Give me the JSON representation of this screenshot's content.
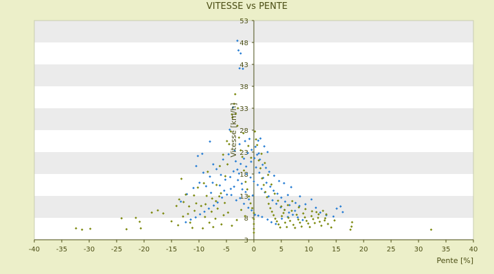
{
  "chart_data": {
    "type": "scatter",
    "title": "VITESSE vs PENTE",
    "xlabel": "Pente [%]",
    "ylabel": "Vitesse [km/h]",
    "xlim": [
      -40,
      40
    ],
    "ylim": [
      3,
      53
    ],
    "xticks": [
      -40,
      -35,
      -30,
      -25,
      -20,
      -15,
      -10,
      -5,
      0,
      5,
      10,
      15,
      20,
      25,
      30,
      35,
      40
    ],
    "yticks": [
      3,
      8,
      13,
      18,
      23,
      28,
      33,
      38,
      43,
      48,
      53
    ],
    "grid": "horizontal alternating bands",
    "legend": "none",
    "series": [
      {
        "color": "#2a7fd4",
        "points": [
          [
            -3.0,
            48.4
          ],
          [
            -2.8,
            46.2
          ],
          [
            -2.4,
            45.5
          ],
          [
            -2.6,
            42.1
          ],
          [
            -2.0,
            42.0
          ],
          [
            -3.8,
            33.2
          ],
          [
            -4.4,
            28.1
          ],
          [
            -8.0,
            25.4
          ],
          [
            -10.2,
            22.1
          ],
          [
            -9.4,
            22.6
          ],
          [
            -10.5,
            19.8
          ],
          [
            -9.2,
            18.3
          ],
          [
            -8.0,
            17.4
          ],
          [
            -7.5,
            16.0
          ],
          [
            -6.2,
            15.4
          ],
          [
            -5.4,
            14.2
          ],
          [
            -4.1,
            13.2
          ],
          [
            -3.2,
            12.0
          ],
          [
            -2.5,
            12.5
          ],
          [
            -1.8,
            11.2
          ],
          [
            -1.0,
            10.3
          ],
          [
            -0.4,
            9.7
          ],
          [
            0.2,
            8.7
          ],
          [
            0.8,
            8.5
          ],
          [
            1.5,
            8.2
          ],
          [
            2.5,
            7.6
          ],
          [
            3.2,
            7.0
          ],
          [
            4.0,
            6.6
          ],
          [
            5.1,
            7.8
          ],
          [
            6.2,
            8.2
          ],
          [
            7.5,
            9.6
          ],
          [
            8.3,
            10.7
          ],
          [
            9.4,
            11.1
          ],
          [
            10.5,
            12.2
          ],
          [
            11.3,
            10.3
          ],
          [
            12.1,
            9.2
          ],
          [
            13.2,
            8.6
          ],
          [
            14.5,
            8.3
          ],
          [
            15.1,
            10.1
          ],
          [
            16.2,
            9.3
          ],
          [
            15.8,
            10.6
          ],
          [
            6.8,
            15.0
          ],
          [
            6.2,
            13.2
          ],
          [
            8.4,
            12.9
          ],
          [
            7.6,
            11.4
          ],
          [
            5.5,
            15.9
          ],
          [
            4.6,
            16.4
          ],
          [
            3.7,
            17.6
          ],
          [
            2.8,
            18.5
          ],
          [
            2.2,
            19.4
          ],
          [
            1.6,
            20.1
          ],
          [
            1.1,
            21.3
          ],
          [
            0.6,
            22.4
          ],
          [
            0.3,
            24.2
          ],
          [
            0.8,
            25.6
          ],
          [
            1.2,
            26.1
          ],
          [
            1.9,
            24.3
          ],
          [
            2.5,
            23.0
          ],
          [
            -0.4,
            23.5
          ],
          [
            -1.1,
            22.8
          ],
          [
            -1.8,
            21.5
          ],
          [
            -2.4,
            20.3
          ],
          [
            -3.0,
            19.0
          ],
          [
            -3.7,
            18.6
          ],
          [
            -4.3,
            17.3
          ],
          [
            -5.2,
            16.7
          ],
          [
            -6.0,
            17.8
          ],
          [
            -6.8,
            19.1
          ],
          [
            -7.4,
            20.2
          ],
          [
            -5.6,
            21.3
          ],
          [
            -4.6,
            22.5
          ],
          [
            -3.5,
            23.3
          ],
          [
            -2.6,
            24.8
          ],
          [
            -1.6,
            25.5
          ],
          [
            -0.8,
            26.0
          ],
          [
            -1.3,
            18.0
          ],
          [
            -0.6,
            17.2
          ],
          [
            0.0,
            16.3
          ],
          [
            0.7,
            15.5
          ],
          [
            1.4,
            14.6
          ],
          [
            2.0,
            13.8
          ],
          [
            2.7,
            12.9
          ],
          [
            3.4,
            12.0
          ],
          [
            4.1,
            11.2
          ],
          [
            4.9,
            10.4
          ],
          [
            5.6,
            9.8
          ],
          [
            6.4,
            9.2
          ],
          [
            7.1,
            8.7
          ],
          [
            8.0,
            8.1
          ],
          [
            8.9,
            7.5
          ],
          [
            -2.2,
            15.8
          ],
          [
            -2.9,
            16.6
          ],
          [
            -3.6,
            15.1
          ],
          [
            -4.2,
            14.6
          ],
          [
            -4.9,
            13.3
          ],
          [
            -5.8,
            12.6
          ],
          [
            -6.6,
            11.5
          ],
          [
            -7.3,
            10.8
          ],
          [
            -8.2,
            10.1
          ],
          [
            -9.0,
            9.4
          ],
          [
            -9.8,
            8.8
          ],
          [
            -10.6,
            8.1
          ],
          [
            -11.5,
            7.6
          ],
          [
            -12.4,
            7.0
          ],
          [
            -13.3,
            11.7
          ],
          [
            -12.2,
            13.4
          ],
          [
            -11.0,
            14.8
          ],
          [
            -9.9,
            16.0
          ],
          [
            -8.7,
            15.2
          ],
          [
            -7.8,
            13.7
          ],
          [
            0.4,
            19.5
          ],
          [
            1.0,
            18.3
          ],
          [
            1.7,
            17.1
          ],
          [
            2.3,
            16.0
          ],
          [
            3.0,
            15.1
          ],
          [
            3.6,
            14.2
          ],
          [
            4.3,
            13.5
          ],
          [
            5.0,
            12.6
          ],
          [
            5.7,
            11.7
          ],
          [
            6.5,
            10.9
          ],
          [
            -0.2,
            13.1
          ],
          [
            -0.9,
            12.2
          ],
          [
            -1.5,
            13.9
          ],
          [
            -2.1,
            14.5
          ],
          [
            -0.5,
            20.8
          ],
          [
            0.1,
            21.6
          ],
          [
            0.9,
            22.7
          ],
          [
            -1.4,
            19.7
          ],
          [
            -2.7,
            18.1
          ],
          [
            -3.3,
            20.9
          ]
        ]
      },
      {
        "color": "#7d8a10",
        "points": [
          [
            -32.4,
            5.6
          ],
          [
            -31.3,
            5.3
          ],
          [
            -29.8,
            5.5
          ],
          [
            -24.1,
            7.9
          ],
          [
            -23.2,
            5.4
          ],
          [
            -21.5,
            8.0
          ],
          [
            -20.8,
            7.1
          ],
          [
            -20.6,
            5.6
          ],
          [
            -18.6,
            9.2
          ],
          [
            -17.5,
            9.7
          ],
          [
            -16.5,
            9.0
          ],
          [
            -15.0,
            7.2
          ],
          [
            -14.1,
            10.7
          ],
          [
            -13.6,
            12.2
          ],
          [
            -13.2,
            16.9
          ],
          [
            -12.8,
            11.6
          ],
          [
            -12.4,
            13.3
          ],
          [
            -12.0,
            8.9
          ],
          [
            -11.6,
            6.9
          ],
          [
            -11.2,
            5.7
          ],
          [
            -10.8,
            9.6
          ],
          [
            -10.5,
            11.3
          ],
          [
            -10.2,
            14.9
          ],
          [
            -9.6,
            10.7
          ],
          [
            -9.3,
            5.6
          ],
          [
            -8.9,
            8.2
          ],
          [
            -8.6,
            13.0
          ],
          [
            -8.1,
            6.9
          ],
          [
            -7.7,
            9.4
          ],
          [
            -7.4,
            5.9
          ],
          [
            -7.0,
            7.8
          ],
          [
            -6.6,
            10.1
          ],
          [
            -6.3,
            12.9
          ],
          [
            -5.9,
            6.5
          ],
          [
            -5.5,
            8.6
          ],
          [
            -5.2,
            17.5
          ],
          [
            -4.8,
            20.2
          ],
          [
            -4.5,
            24.8
          ],
          [
            -4.2,
            27.7
          ],
          [
            -3.9,
            30.9
          ],
          [
            -3.6,
            34.0
          ],
          [
            -3.3,
            31.7
          ],
          [
            -3.0,
            29.0
          ],
          [
            -2.7,
            26.3
          ],
          [
            -2.4,
            23.4
          ],
          [
            -2.1,
            21.9
          ],
          [
            -1.8,
            18.8
          ],
          [
            -1.5,
            16.2
          ],
          [
            -1.2,
            14.5
          ],
          [
            -0.9,
            12.9
          ],
          [
            -0.6,
            11.3
          ],
          [
            -0.3,
            10.2
          ],
          [
            0.0,
            9.1
          ],
          [
            0.0,
            7.7
          ],
          [
            0.0,
            6.6
          ],
          [
            0.0,
            5.5
          ],
          [
            0.0,
            4.6
          ],
          [
            0.2,
            27.7
          ],
          [
            0.4,
            25.9
          ],
          [
            0.6,
            24.6
          ],
          [
            0.9,
            21.1
          ],
          [
            1.2,
            19.3
          ],
          [
            1.5,
            17.0
          ],
          [
            1.8,
            15.5
          ],
          [
            2.1,
            13.9
          ],
          [
            2.4,
            12.7
          ],
          [
            2.7,
            11.2
          ],
          [
            3.0,
            10.2
          ],
          [
            3.3,
            9.4
          ],
          [
            3.6,
            8.6
          ],
          [
            3.9,
            7.8
          ],
          [
            4.2,
            7.2
          ],
          [
            4.5,
            6.5
          ],
          [
            4.8,
            5.8
          ],
          [
            5.1,
            8.4
          ],
          [
            5.4,
            9.1
          ],
          [
            5.7,
            6.9
          ],
          [
            6.0,
            5.9
          ],
          [
            6.3,
            8.0
          ],
          [
            6.6,
            7.3
          ],
          [
            6.9,
            9.6
          ],
          [
            7.2,
            6.4
          ],
          [
            7.5,
            5.7
          ],
          [
            7.8,
            8.7
          ],
          [
            8.1,
            7.6
          ],
          [
            8.4,
            6.9
          ],
          [
            8.7,
            6.0
          ],
          [
            9.0,
            9.0
          ],
          [
            9.3,
            8.1
          ],
          [
            9.6,
            7.3
          ],
          [
            9.9,
            6.7
          ],
          [
            10.2,
            5.9
          ],
          [
            10.5,
            8.4
          ],
          [
            10.8,
            7.7
          ],
          [
            11.1,
            6.8
          ],
          [
            11.4,
            9.3
          ],
          [
            11.7,
            8.0
          ],
          [
            12.0,
            7.1
          ],
          [
            12.3,
            6.2
          ],
          [
            12.6,
            9.6
          ],
          [
            12.9,
            7.4
          ],
          [
            13.2,
            8.8
          ],
          [
            13.5,
            6.6
          ],
          [
            14.1,
            5.8
          ],
          [
            14.7,
            7.4
          ],
          [
            17.8,
            6.0
          ],
          [
            17.9,
            7.0
          ],
          [
            17.6,
            5.3
          ],
          [
            32.3,
            5.3
          ],
          [
            -6.8,
            15.5
          ],
          [
            -6.2,
            19.8
          ],
          [
            -5.6,
            22.4
          ],
          [
            -4.9,
            25.5
          ],
          [
            -4.0,
            31.6
          ],
          [
            -3.4,
            36.2
          ],
          [
            -2.9,
            33.0
          ],
          [
            -1.9,
            27.3
          ],
          [
            -1.0,
            24.4
          ],
          [
            -0.5,
            21.7
          ],
          [
            -8.4,
            18.5
          ],
          [
            -9.1,
            15.9
          ],
          [
            -10.9,
            13.1
          ],
          [
            -11.8,
            10.6
          ],
          [
            -12.9,
            8.3
          ],
          [
            -13.8,
            6.3
          ],
          [
            1.4,
            22.6
          ],
          [
            2.0,
            20.5
          ],
          [
            2.6,
            17.8
          ],
          [
            3.2,
            15.6
          ],
          [
            3.8,
            13.5
          ],
          [
            4.4,
            11.9
          ],
          [
            5.0,
            10.6
          ],
          [
            5.6,
            9.8
          ],
          [
            6.2,
            10.9
          ],
          [
            7.0,
            11.8
          ],
          [
            8.2,
            10.4
          ],
          [
            9.4,
            10.0
          ],
          [
            10.6,
            9.5
          ],
          [
            11.8,
            8.8
          ],
          [
            13.0,
            7.9
          ],
          [
            -1.6,
            8.4
          ],
          [
            -2.3,
            9.8
          ],
          [
            -3.1,
            7.5
          ],
          [
            -4.0,
            6.2
          ],
          [
            -4.7,
            9.2
          ],
          [
            -5.3,
            11.4
          ],
          [
            -6.0,
            13.6
          ],
          [
            -6.9,
            11.8
          ],
          [
            -7.6,
            12.4
          ],
          [
            -8.8,
            11.1
          ]
        ]
      }
    ]
  }
}
